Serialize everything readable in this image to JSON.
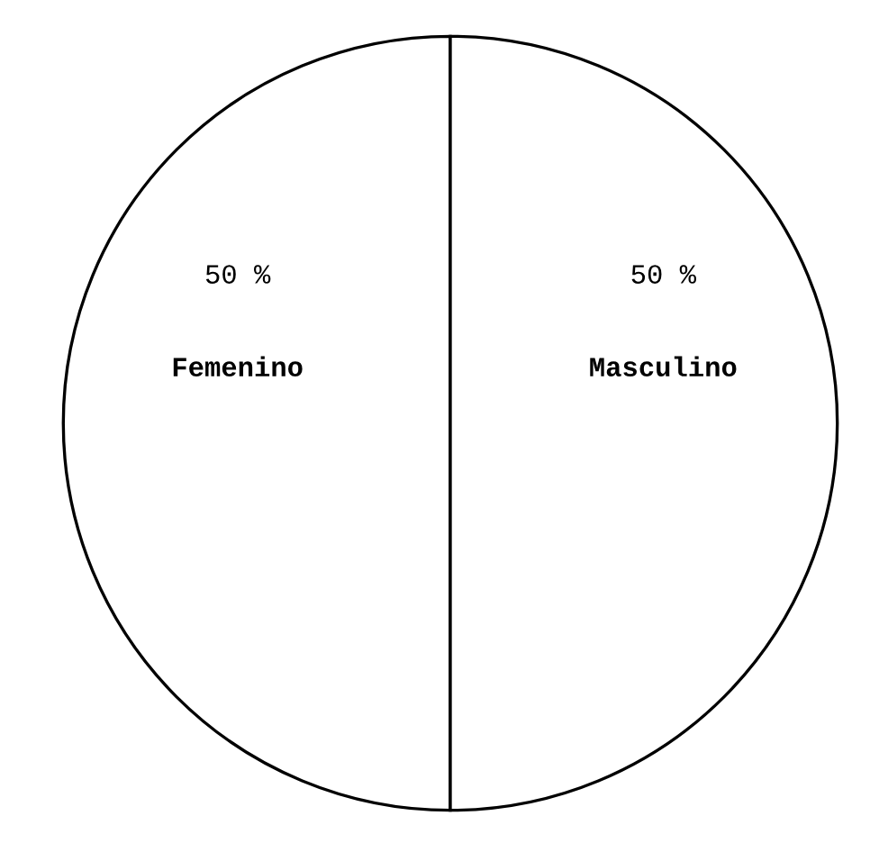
{
  "chart_data": {
    "type": "pie",
    "categories": [
      "Femenino",
      "Masculino"
    ],
    "values": [
      50,
      50
    ],
    "value_labels": [
      "50 %",
      "50 %"
    ],
    "colors": [
      "#ffffff",
      "#ffffff"
    ],
    "legend": false
  }
}
